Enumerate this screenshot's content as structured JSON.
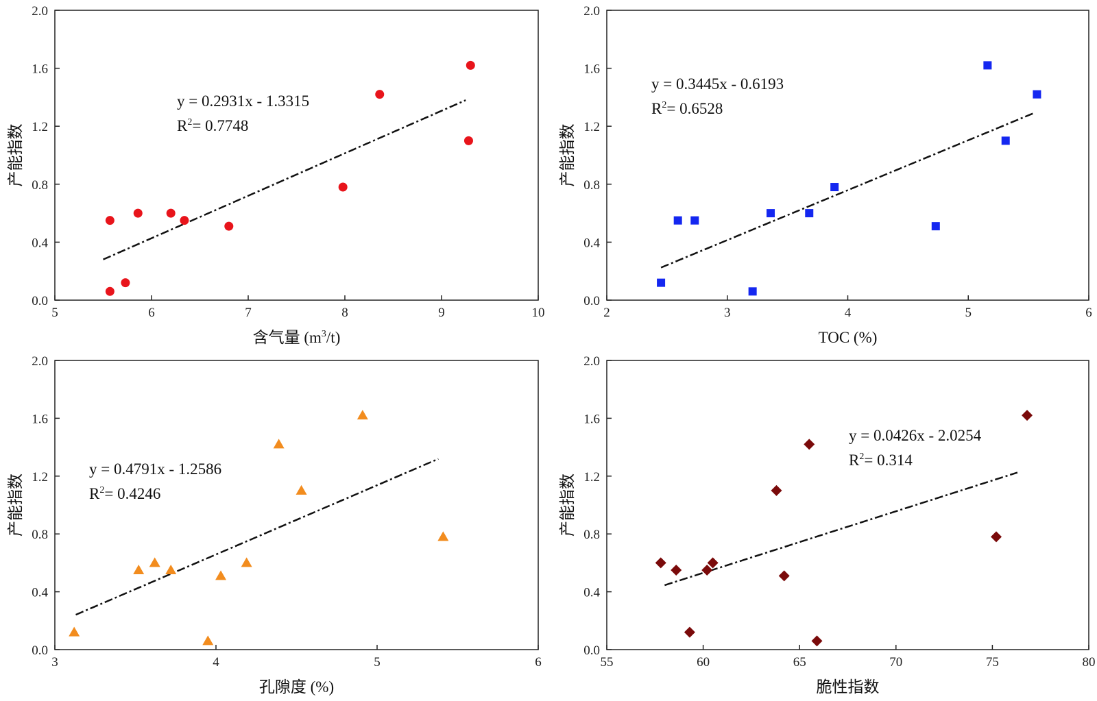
{
  "chart_data": [
    {
      "type": "scatter",
      "xlabel_main": "含气量 (m",
      "xlabel_sup": "3",
      "xlabel_tail": "/t)",
      "ylabel": "产能指数",
      "xlim": [
        5,
        10
      ],
      "ylim": [
        0,
        2.0
      ],
      "xticks": [
        "5",
        "6",
        "7",
        "8",
        "9",
        "10"
      ],
      "yticks": [
        "0.0",
        "0.4",
        "0.8",
        "1.2",
        "1.6",
        "2.0"
      ],
      "marker": "circle",
      "color": "#e8141b",
      "points": [
        {
          "x": 5.57,
          "y": 0.06
        },
        {
          "x": 5.73,
          "y": 0.12
        },
        {
          "x": 5.57,
          "y": 0.55
        },
        {
          "x": 5.86,
          "y": 0.6
        },
        {
          "x": 6.2,
          "y": 0.6
        },
        {
          "x": 6.34,
          "y": 0.55
        },
        {
          "x": 6.8,
          "y": 0.51
        },
        {
          "x": 7.98,
          "y": 0.78
        },
        {
          "x": 8.36,
          "y": 1.42
        },
        {
          "x": 9.28,
          "y": 1.1
        },
        {
          "x": 9.3,
          "y": 1.62
        }
      ],
      "trend": {
        "slope": 0.2931,
        "intercept": -1.3315,
        "x_range": [
          5.5,
          9.25
        ]
      },
      "equation": "y = 0.2931x - 1.3315",
      "r2_label": "R",
      "r2_sup": "2",
      "r2_value": "= 0.7748"
    },
    {
      "type": "scatter",
      "xlabel_main": "TOC (%)",
      "xlabel_sup": "",
      "xlabel_tail": "",
      "ylabel": "产能指数",
      "xlim": [
        2,
        6
      ],
      "ylim": [
        0,
        2.0
      ],
      "xticks": [
        "2",
        "3",
        "4",
        "5",
        "6"
      ],
      "yticks": [
        "0.0",
        "0.4",
        "0.8",
        "1.2",
        "1.6",
        "2.0"
      ],
      "marker": "square",
      "color": "#1427f0",
      "points": [
        {
          "x": 2.45,
          "y": 0.12
        },
        {
          "x": 2.59,
          "y": 0.55
        },
        {
          "x": 2.73,
          "y": 0.55
        },
        {
          "x": 3.21,
          "y": 0.06
        },
        {
          "x": 3.36,
          "y": 0.6
        },
        {
          "x": 3.68,
          "y": 0.6
        },
        {
          "x": 3.89,
          "y": 0.78
        },
        {
          "x": 4.73,
          "y": 0.51
        },
        {
          "x": 5.16,
          "y": 1.62
        },
        {
          "x": 5.31,
          "y": 1.1
        },
        {
          "x": 5.57,
          "y": 1.42
        }
      ],
      "trend": {
        "slope": 0.3445,
        "intercept": -0.6193,
        "x_range": [
          2.45,
          5.55
        ]
      },
      "equation": "y = 0.3445x - 0.6193",
      "r2_label": "R",
      "r2_sup": "2",
      "r2_value": "= 0.6528"
    },
    {
      "type": "scatter",
      "xlabel_main": "孔隙度 (%)",
      "xlabel_sup": "",
      "xlabel_tail": "",
      "ylabel": "产能指数",
      "xlim": [
        3,
        6
      ],
      "ylim": [
        0,
        2.0
      ],
      "xticks": [
        "3",
        "4",
        "5",
        "6"
      ],
      "yticks": [
        "0.0",
        "0.4",
        "0.8",
        "1.2",
        "1.6",
        "2.0"
      ],
      "marker": "triangle",
      "color": "#f28c1e",
      "points": [
        {
          "x": 3.12,
          "y": 0.12
        },
        {
          "x": 3.52,
          "y": 0.55
        },
        {
          "x": 3.62,
          "y": 0.6
        },
        {
          "x": 3.72,
          "y": 0.55
        },
        {
          "x": 3.95,
          "y": 0.06
        },
        {
          "x": 4.03,
          "y": 0.51
        },
        {
          "x": 4.19,
          "y": 0.6
        },
        {
          "x": 4.39,
          "y": 1.42
        },
        {
          "x": 4.53,
          "y": 1.1
        },
        {
          "x": 4.91,
          "y": 1.62
        },
        {
          "x": 5.41,
          "y": 0.78
        }
      ],
      "trend": {
        "slope": 0.4791,
        "intercept": -1.2586,
        "x_range": [
          3.13,
          5.38
        ]
      },
      "equation": "y = 0.4791x - 1.2586",
      "r2_label": "R",
      "r2_sup": "2",
      "r2_value": "= 0.4246"
    },
    {
      "type": "scatter",
      "xlabel_main": "脆性指数",
      "xlabel_sup": "",
      "xlabel_tail": "",
      "ylabel": "产能指数",
      "xlim": [
        55,
        80
      ],
      "ylim": [
        0,
        2.0
      ],
      "xticks": [
        "55",
        "60",
        "65",
        "70",
        "75",
        "80"
      ],
      "yticks": [
        "0.0",
        "0.4",
        "0.8",
        "1.2",
        "1.6",
        "2.0"
      ],
      "marker": "diamond",
      "color": "#7a0a0a",
      "points": [
        {
          "x": 57.8,
          "y": 0.6
        },
        {
          "x": 58.6,
          "y": 0.55
        },
        {
          "x": 59.3,
          "y": 0.12
        },
        {
          "x": 60.2,
          "y": 0.55
        },
        {
          "x": 60.5,
          "y": 0.6
        },
        {
          "x": 63.8,
          "y": 1.1
        },
        {
          "x": 64.2,
          "y": 0.51
        },
        {
          "x": 65.5,
          "y": 1.42
        },
        {
          "x": 65.9,
          "y": 0.06
        },
        {
          "x": 75.2,
          "y": 0.78
        },
        {
          "x": 76.8,
          "y": 1.62
        }
      ],
      "trend": {
        "slope": 0.0426,
        "intercept": -2.0254,
        "x_range": [
          58.0,
          76.3
        ]
      },
      "equation": "y = 0.0426x - 2.0254",
      "r2_label": "R",
      "r2_sup": "2",
      "r2_value": "= 0.314"
    }
  ]
}
